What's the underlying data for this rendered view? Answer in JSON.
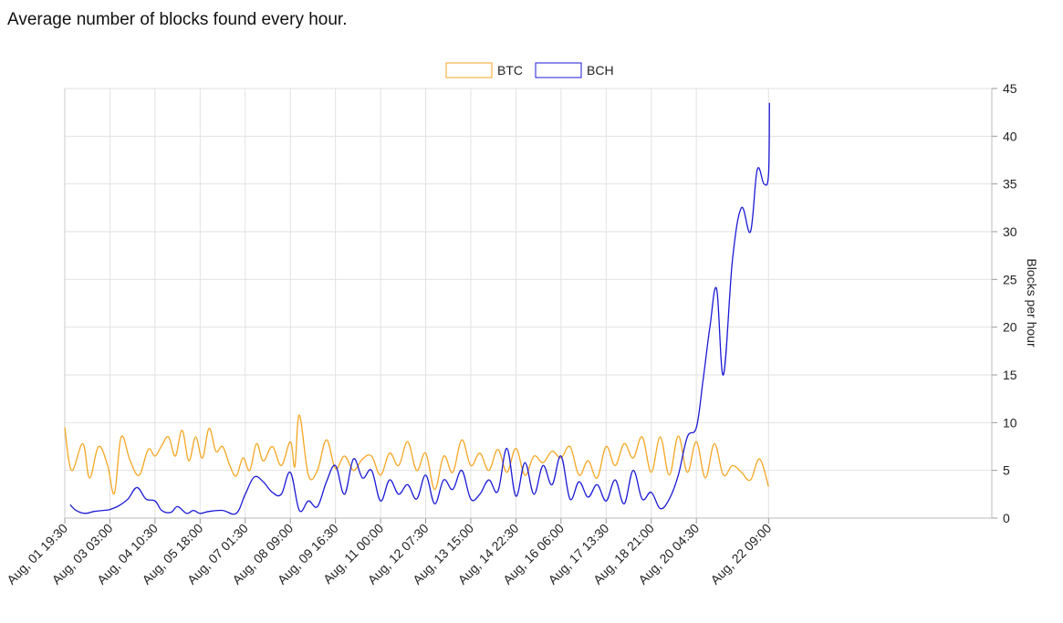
{
  "chart_data": {
    "type": "line",
    "title": "Average number of blocks found every hour.",
    "ylabel": "Blocks per hour",
    "xlabel": "",
    "ylim": [
      0,
      45
    ],
    "yticks": [
      0,
      5,
      10,
      15,
      20,
      25,
      30,
      35,
      40,
      45
    ],
    "xlim": [
      0,
      20.55
    ],
    "x_tick_positions": [
      0,
      1,
      2,
      3,
      4,
      5,
      6,
      7,
      8,
      9,
      10,
      11,
      12,
      13,
      14,
      15.6
    ],
    "x_tick_labels": [
      "Aug, 01 19:30",
      "Aug, 03 03:00",
      "Aug, 04 10:30",
      "Aug, 05 18:00",
      "Aug, 07 01:30",
      "Aug, 08 09:00",
      "Aug, 09 16:30",
      "Aug, 11 00:00",
      "Aug, 12 07:30",
      "Aug, 13 15:00",
      "Aug, 14 22:30",
      "Aug, 16 06:00",
      "Aug, 17 13:30",
      "Aug, 18 21:00",
      "Aug, 20 04:30",
      "Aug, 22 09:00"
    ],
    "grid": true,
    "legend": "top-center",
    "series": [
      {
        "name": "BTC",
        "color": "#f5a623",
        "x": [
          0,
          0.15,
          0.4,
          0.55,
          0.75,
          0.95,
          1.1,
          1.25,
          1.45,
          1.65,
          1.85,
          2.0,
          2.15,
          2.3,
          2.45,
          2.6,
          2.75,
          2.9,
          3.05,
          3.2,
          3.35,
          3.5,
          3.65,
          3.8,
          3.95,
          4.1,
          4.25,
          4.4,
          4.6,
          4.8,
          5.0,
          5.1,
          5.2,
          5.4,
          5.6,
          5.8,
          6.0,
          6.2,
          6.4,
          6.6,
          6.8,
          7.0,
          7.2,
          7.4,
          7.6,
          7.8,
          8.0,
          8.2,
          8.4,
          8.6,
          8.8,
          9.0,
          9.2,
          9.4,
          9.6,
          9.8,
          10.0,
          10.2,
          10.4,
          10.6,
          10.8,
          11.0,
          11.2,
          11.4,
          11.6,
          11.8,
          12.0,
          12.2,
          12.4,
          12.6,
          12.8,
          13.0,
          13.2,
          13.4,
          13.6,
          13.8,
          14.0,
          14.2,
          14.4,
          14.6,
          14.8,
          15.0,
          15.2,
          15.4,
          15.6
        ],
        "values": [
          9.5,
          5.0,
          7.8,
          4.2,
          7.5,
          5.5,
          2.6,
          8.5,
          6.0,
          4.5,
          7.2,
          6.5,
          7.6,
          8.5,
          6.5,
          9.2,
          6.0,
          8.5,
          6.3,
          9.4,
          7.0,
          7.5,
          5.6,
          4.4,
          6.3,
          5.0,
          7.8,
          6.0,
          7.5,
          5.5,
          8.0,
          5.4,
          10.8,
          4.5,
          5.0,
          8.2,
          5.2,
          6.5,
          5.0,
          6.2,
          6.5,
          4.5,
          6.8,
          5.5,
          8.0,
          5.0,
          6.8,
          3.0,
          6.5,
          4.8,
          8.2,
          5.5,
          6.8,
          5.0,
          7.2,
          4.8,
          7.3,
          4.5,
          6.5,
          5.8,
          7.0,
          6.3,
          7.5,
          4.5,
          6.0,
          4.2,
          7.5,
          5.5,
          7.8,
          6.3,
          8.5,
          4.8,
          8.5,
          4.5,
          8.6,
          4.8,
          8.0,
          4.2,
          7.8,
          4.5,
          5.5,
          4.8,
          4.0,
          6.2,
          3.3
        ]
      },
      {
        "name": "BCH",
        "color": "#1a1ad6",
        "x": [
          0.12,
          0.25,
          0.45,
          0.65,
          0.85,
          1.0,
          1.2,
          1.4,
          1.6,
          1.8,
          2.0,
          2.15,
          2.35,
          2.5,
          2.7,
          2.85,
          3.0,
          3.2,
          3.5,
          3.8,
          4.0,
          4.2,
          4.4,
          4.6,
          4.8,
          5.0,
          5.2,
          5.4,
          5.6,
          5.8,
          6.0,
          6.2,
          6.4,
          6.6,
          6.8,
          7.0,
          7.2,
          7.4,
          7.6,
          7.8,
          8.0,
          8.2,
          8.4,
          8.6,
          8.8,
          9.0,
          9.2,
          9.4,
          9.6,
          9.8,
          10.0,
          10.2,
          10.4,
          10.6,
          10.8,
          11.0,
          11.2,
          11.4,
          11.6,
          11.8,
          12.0,
          12.2,
          12.4,
          12.6,
          12.8,
          13.0,
          13.2,
          13.4,
          13.6,
          13.8,
          14.0,
          14.15,
          14.3,
          14.45,
          14.6,
          14.8,
          15.0,
          15.2,
          15.35,
          15.5,
          15.6,
          15.62
        ],
        "values": [
          1.4,
          0.8,
          0.5,
          0.7,
          0.8,
          0.9,
          1.3,
          2.0,
          3.2,
          2.0,
          1.8,
          0.8,
          0.6,
          1.2,
          0.5,
          0.8,
          0.5,
          0.7,
          0.8,
          0.5,
          2.5,
          4.3,
          3.8,
          2.7,
          2.5,
          4.8,
          0.8,
          1.8,
          1.2,
          3.8,
          5.5,
          2.5,
          6.2,
          4.2,
          5.0,
          1.8,
          4.0,
          2.5,
          3.5,
          2.0,
          4.5,
          1.5,
          4.0,
          3.0,
          5.0,
          2.0,
          2.5,
          4.0,
          2.8,
          7.3,
          2.3,
          5.8,
          2.5,
          5.5,
          3.5,
          6.5,
          2.0,
          3.8,
          2.2,
          3.5,
          1.8,
          4.0,
          1.5,
          5.0,
          2.0,
          2.7,
          1.0,
          2.0,
          4.5,
          8.5,
          9.5,
          14.5,
          20.0,
          24.0,
          15.0,
          27.0,
          32.5,
          30.0,
          36.5,
          35.0,
          36.0,
          43.5
        ]
      }
    ]
  }
}
